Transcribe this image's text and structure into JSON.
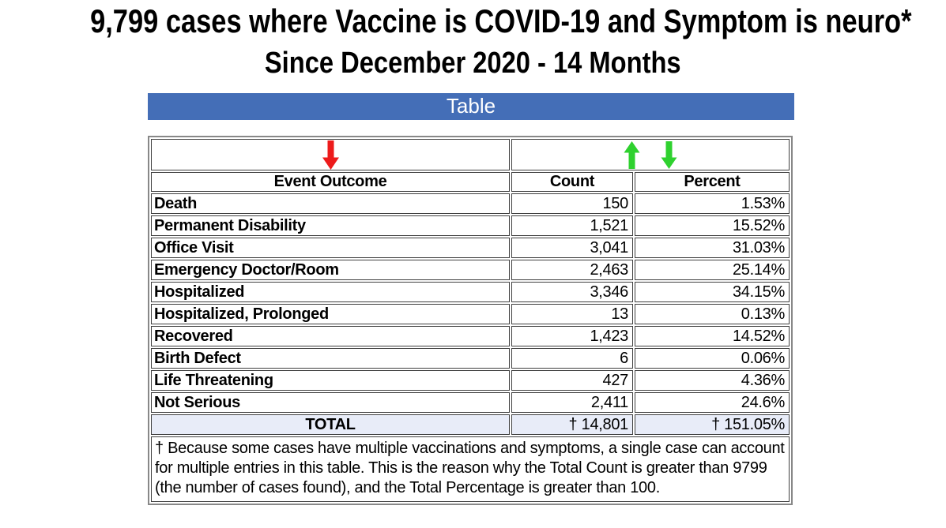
{
  "title": "9,799 cases where Vaccine is COVID-19 and Symptom is neuro*",
  "subtitle": "Since December 2020 - 14 Months",
  "section_header": "Table",
  "colors": {
    "section_bar_blue": "#446EB7",
    "total_row_bg": "#E8ECF8",
    "sort_arrow_red": "#ED1B1B",
    "sort_arrow_green": "#2FD12F"
  },
  "sort_controls": {
    "outcome_sort_icon": "red-down-arrow-icon",
    "count_sort_up_icon": "green-up-arrow-icon",
    "count_sort_down_icon": "green-down-arrow-icon"
  },
  "table": {
    "columns": [
      "Event Outcome",
      "Count",
      "Percent"
    ],
    "rows": [
      {
        "outcome": "Death",
        "count": "150",
        "percent": "1.53%"
      },
      {
        "outcome": "Permanent Disability",
        "count": "1,521",
        "percent": "15.52%"
      },
      {
        "outcome": "Office Visit",
        "count": "3,041",
        "percent": "31.03%"
      },
      {
        "outcome": "Emergency Doctor/Room",
        "count": "2,463",
        "percent": "25.14%"
      },
      {
        "outcome": "Hospitalized",
        "count": "3,346",
        "percent": "34.15%"
      },
      {
        "outcome": "Hospitalized, Prolonged",
        "count": "13",
        "percent": "0.13%"
      },
      {
        "outcome": "Recovered",
        "count": "1,423",
        "percent": "14.52%"
      },
      {
        "outcome": "Birth Defect",
        "count": "6",
        "percent": "0.06%"
      },
      {
        "outcome": "Life Threatening",
        "count": "427",
        "percent": "4.36%"
      },
      {
        "outcome": "Not Serious",
        "count": "2,411",
        "percent": "24.6%"
      }
    ],
    "total": {
      "label": "TOTAL",
      "count": "† 14,801",
      "percent": "† 151.05%"
    },
    "footnote": "† Because some cases have multiple vaccinations and symptoms, a single case can account for multiple entries in this table. This is the reason why the Total Count is greater than 9799 (the number of cases found), and the Total Percentage is greater than 100."
  }
}
